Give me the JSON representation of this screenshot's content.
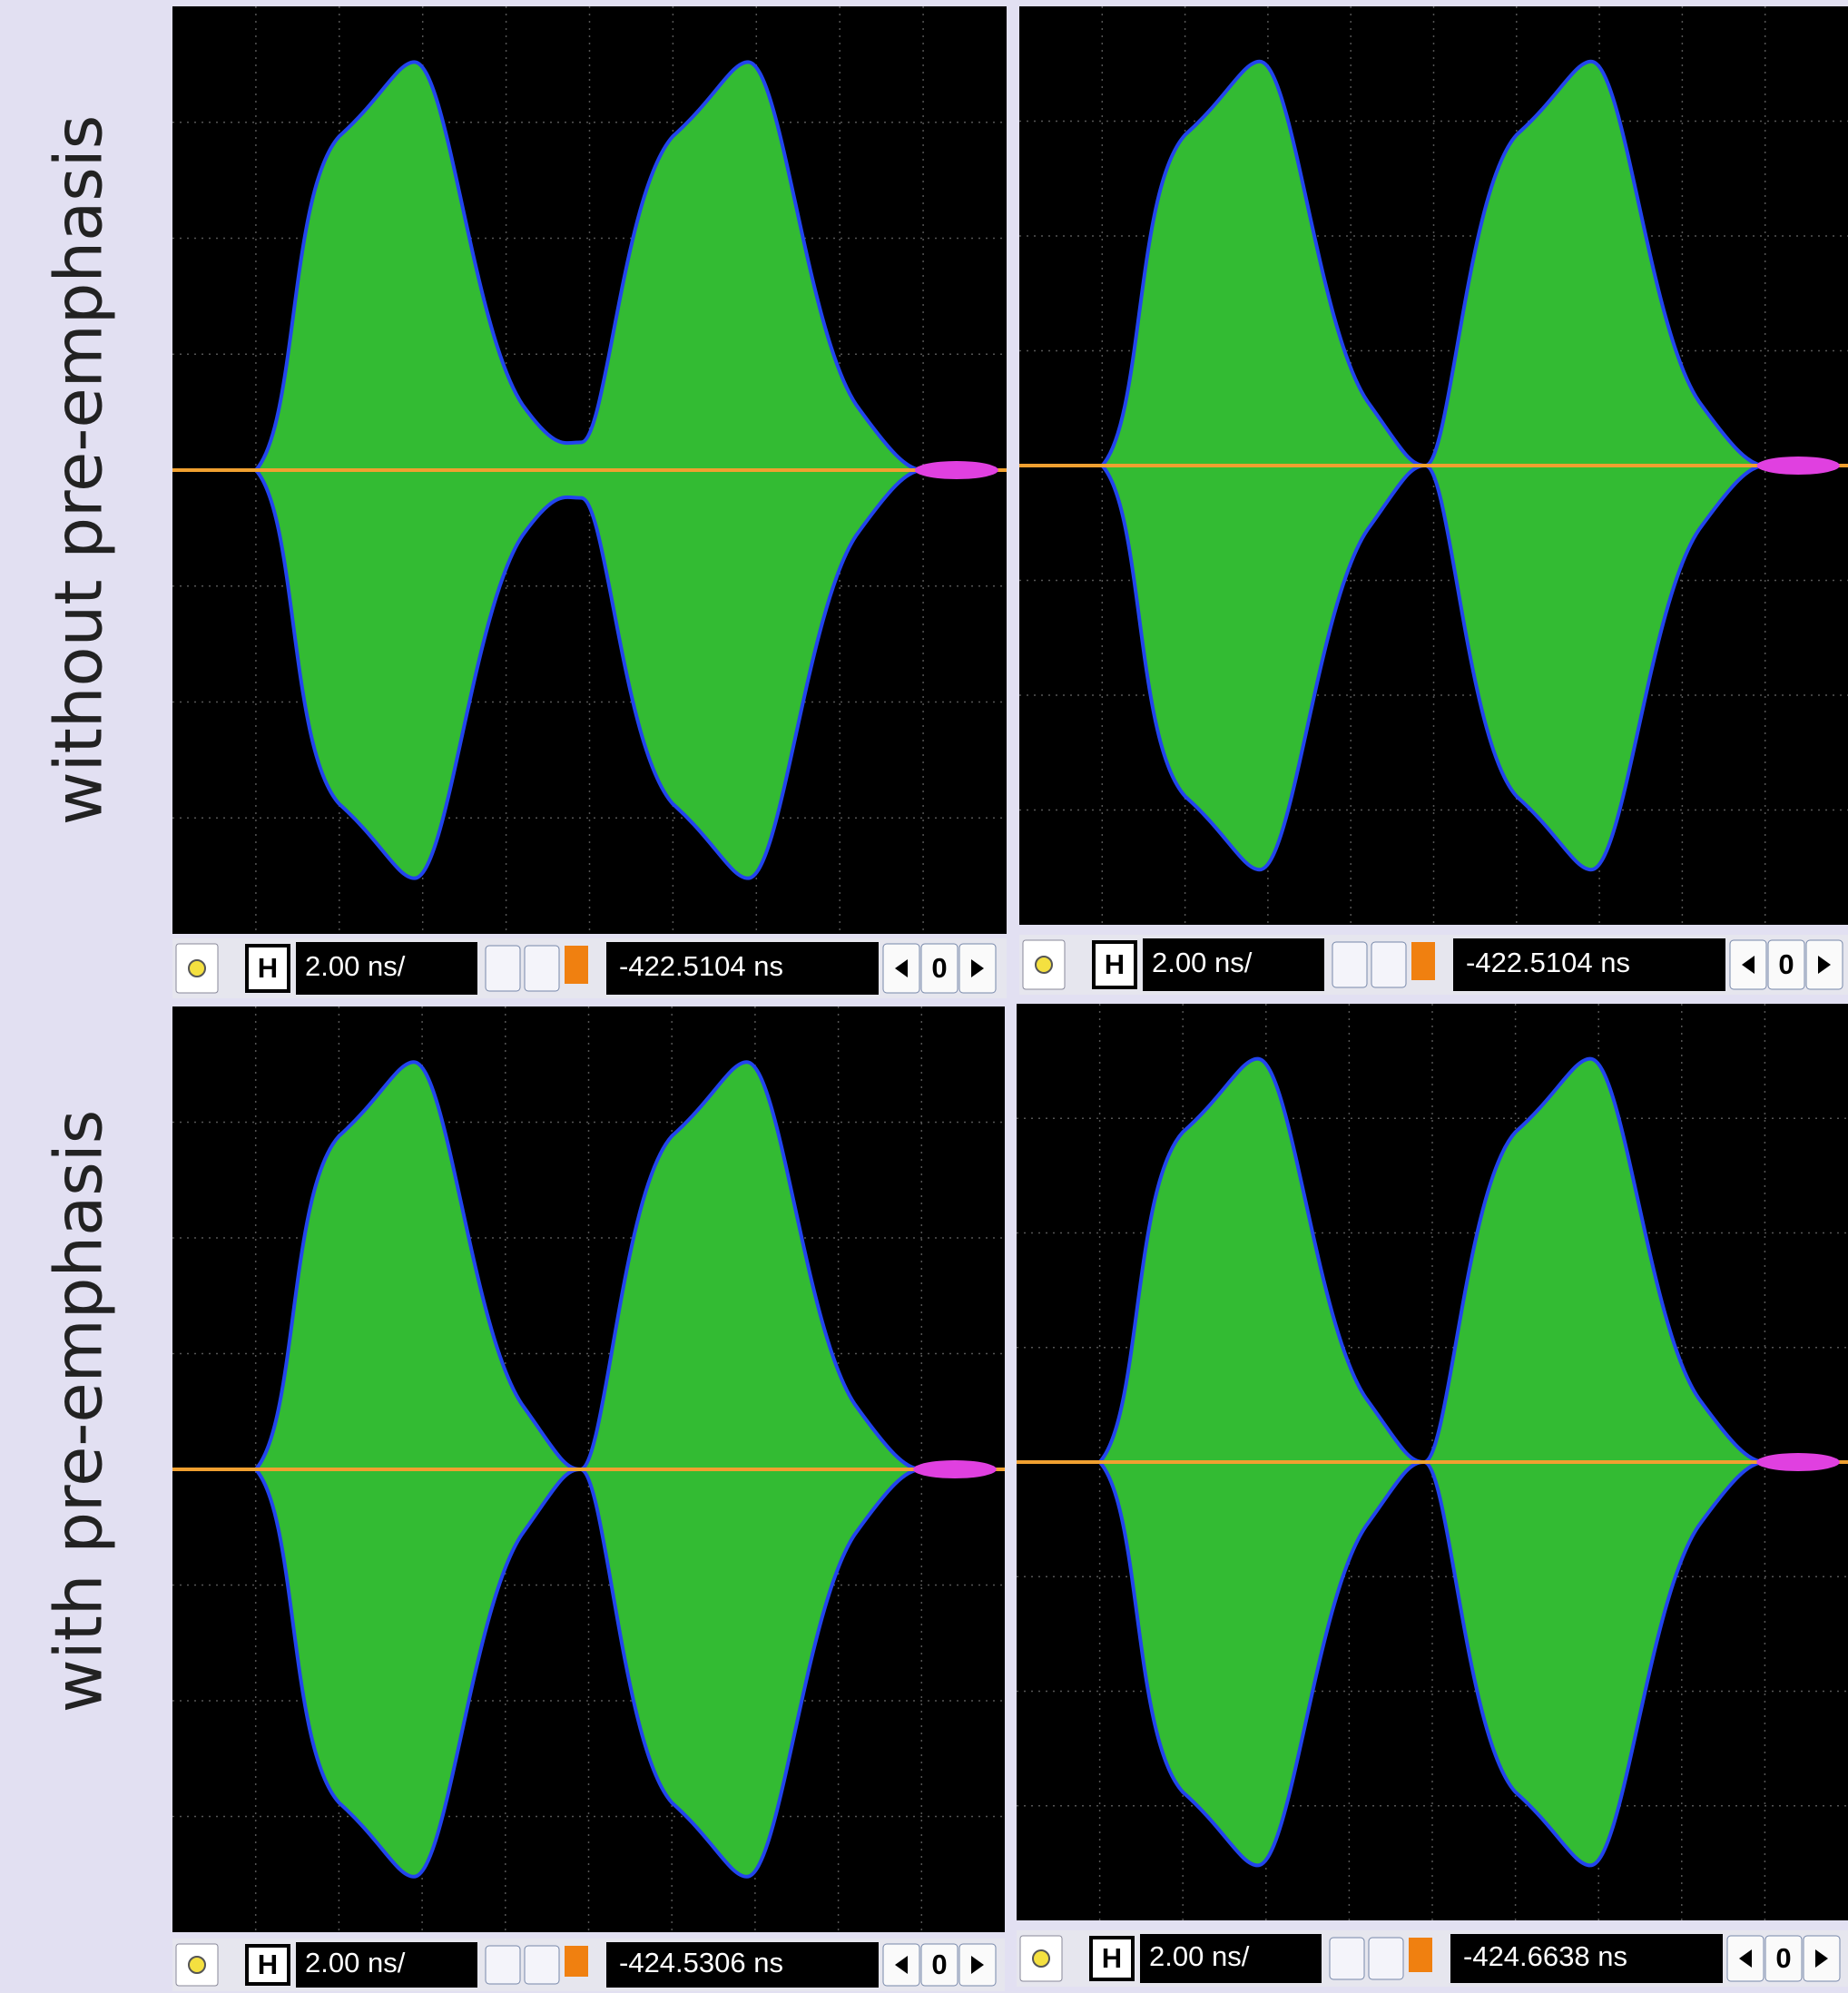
{
  "labels": {
    "top": "without pre-emphasis",
    "bottom": "with pre-emphasis"
  },
  "panels": [
    {
      "h_button": "H",
      "timebase": "2.00 ns/",
      "position": "-422.5104 ns",
      "zero_button": "0"
    },
    {
      "h_button": "H",
      "timebase": "2.00 ns/",
      "position": "-422.5104 ns",
      "zero_button": "0"
    },
    {
      "h_button": "H",
      "timebase": "2.00 ns/",
      "position": "-424.5306 ns",
      "zero_button": "0"
    },
    {
      "h_button": "H",
      "timebase": "2.00 ns/",
      "position": "-424.6638 ns",
      "zero_button": "0"
    }
  ]
}
